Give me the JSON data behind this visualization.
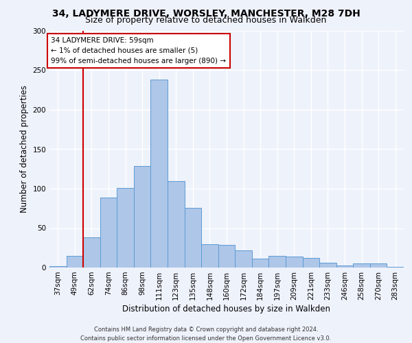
{
  "title_line1": "34, LADYMERE DRIVE, WORSLEY, MANCHESTER, M28 7DH",
  "title_line2": "Size of property relative to detached houses in Walkden",
  "xlabel": "Distribution of detached houses by size in Walkden",
  "ylabel": "Number of detached properties",
  "footer_line1": "Contains HM Land Registry data © Crown copyright and database right 2024.",
  "footer_line2": "Contains public sector information licensed under the Open Government Licence v3.0.",
  "categories": [
    "37sqm",
    "49sqm",
    "62sqm",
    "74sqm",
    "86sqm",
    "98sqm",
    "111sqm",
    "123sqm",
    "135sqm",
    "148sqm",
    "160sqm",
    "172sqm",
    "184sqm",
    "197sqm",
    "209sqm",
    "221sqm",
    "233sqm",
    "246sqm",
    "258sqm",
    "270sqm",
    "283sqm"
  ],
  "values": [
    2,
    15,
    38,
    89,
    101,
    129,
    238,
    110,
    76,
    30,
    29,
    22,
    11,
    15,
    14,
    12,
    6,
    3,
    5,
    5,
    1
  ],
  "bar_color": "#aec6e8",
  "bar_edge_color": "#5b9bd5",
  "annotation_line1": "34 LADYMERE DRIVE: 59sqm",
  "annotation_line2": "← 1% of detached houses are smaller (5)",
  "annotation_line3": "99% of semi-detached houses are larger (890) →",
  "vline_color": "#cc0000",
  "box_edge_color": "#cc0000",
  "ylim": [
    0,
    300
  ],
  "yticks": [
    0,
    50,
    100,
    150,
    200,
    250,
    300
  ],
  "background_color": "#eef2fb",
  "grid_color": "#ffffff",
  "title_fontsize": 10,
  "subtitle_fontsize": 9,
  "axis_label_fontsize": 8.5,
  "tick_fontsize": 7.5,
  "footer_fontsize": 6,
  "annotation_fontsize": 7.5
}
